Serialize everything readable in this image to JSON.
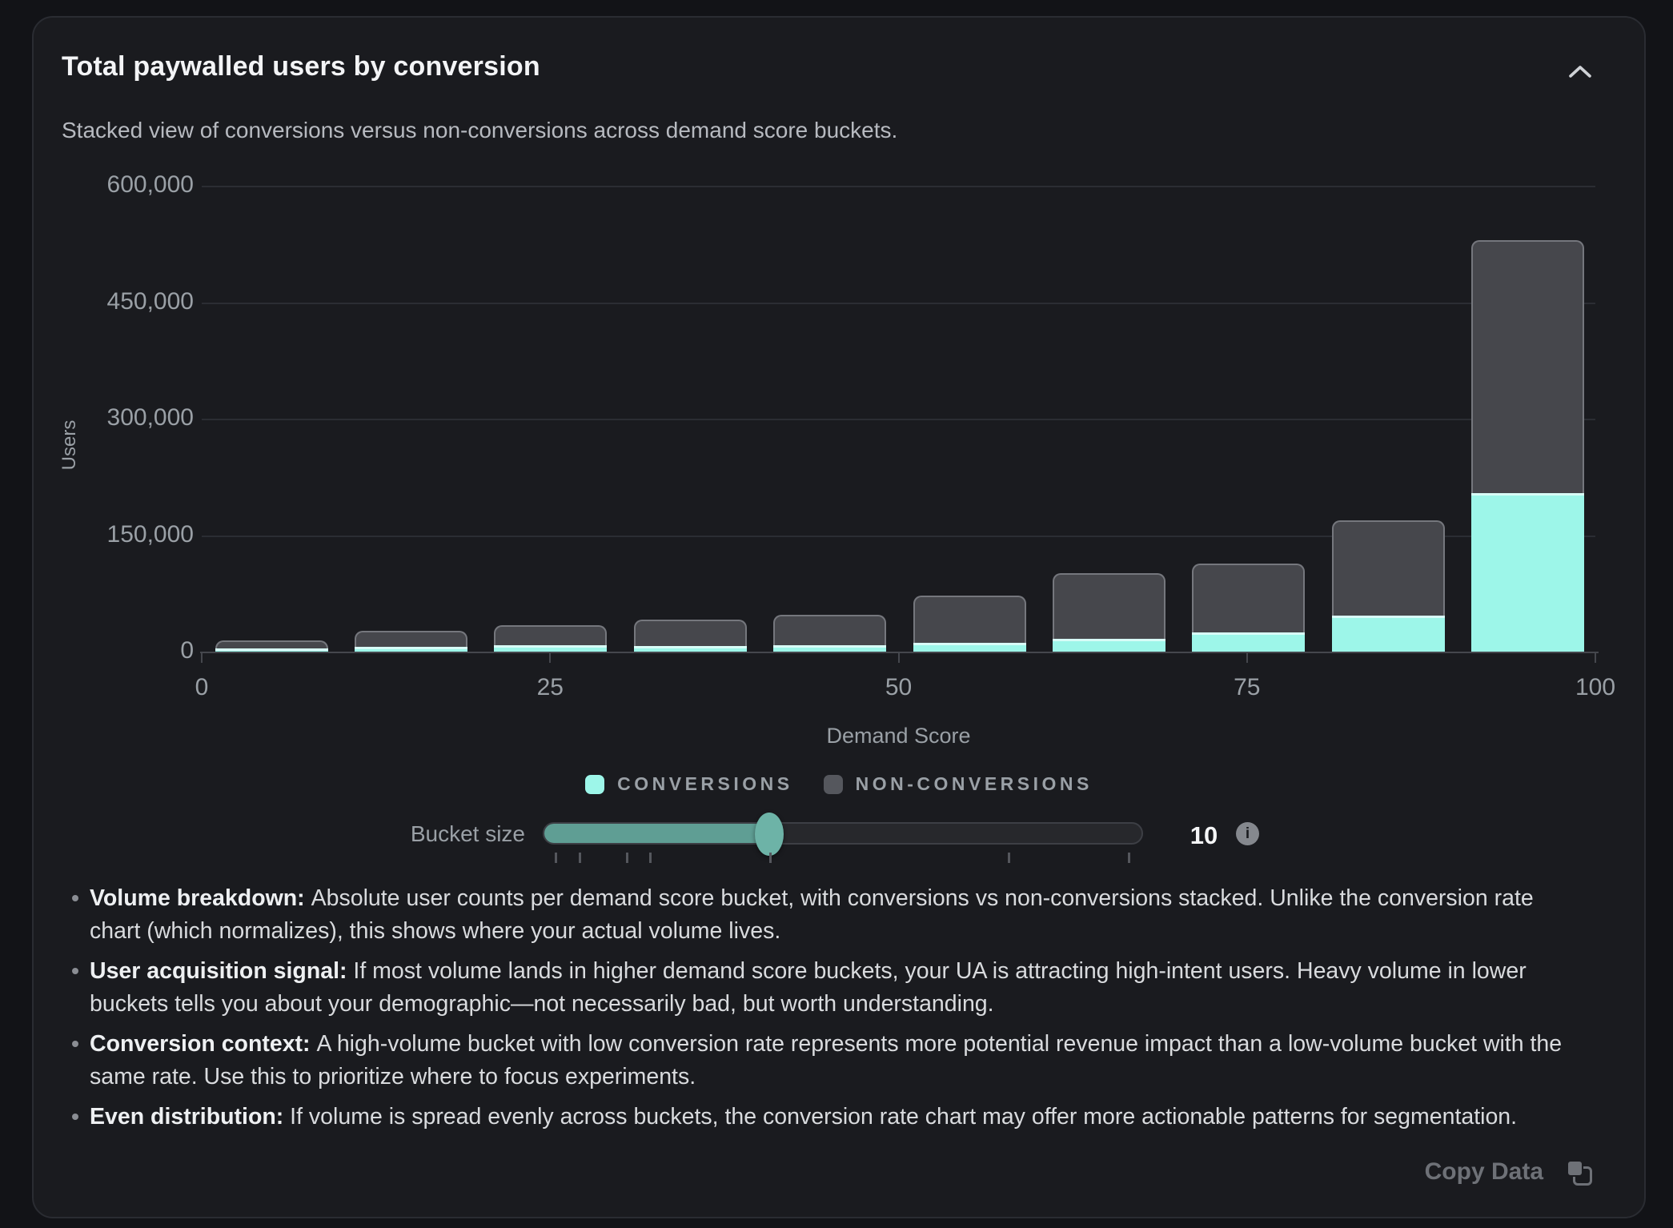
{
  "card": {
    "title": "Total paywalled users by conversion",
    "subtitle": "Stacked view of conversions versus non-conversions across demand score buckets.",
    "collapse_icon": "chevron-up",
    "copy_button_label": "Copy Data"
  },
  "chart_data": {
    "type": "bar",
    "stacked": true,
    "title": "Total paywalled users by conversion",
    "xlabel": "Demand Score",
    "ylabel": "Users",
    "ylim": [
      0,
      600000
    ],
    "xlim": [
      0,
      100
    ],
    "grid": true,
    "legend_position": "bottom",
    "categories": [
      "0-10",
      "10-20",
      "20-30",
      "30-40",
      "40-50",
      "50-60",
      "60-70",
      "70-80",
      "80-90",
      "90-100"
    ],
    "series": [
      {
        "name": "Conversions",
        "color": "#9df6e9",
        "values": [
          4200,
          6100,
          7800,
          6800,
          8400,
          11400,
          16800,
          24500,
          46000,
          204000
        ]
      },
      {
        "name": "Non-conversions",
        "color": "#46474c",
        "values": [
          10600,
          20700,
          26400,
          34500,
          39300,
          60400,
          84400,
          89300,
          123500,
          326000
        ]
      }
    ],
    "y_ticks": [
      {
        "value": 600000,
        "label": "600,000"
      },
      {
        "value": 450000,
        "label": "450,000"
      },
      {
        "value": 300000,
        "label": "300,000"
      },
      {
        "value": 150000,
        "label": "150,000"
      },
      {
        "value": 0,
        "label": "0"
      }
    ],
    "x_ticks": [
      {
        "value": 0,
        "label": "0"
      },
      {
        "value": 25,
        "label": "25"
      },
      {
        "value": 50,
        "label": "50"
      },
      {
        "value": 75,
        "label": "75"
      },
      {
        "value": 100,
        "label": "100"
      }
    ]
  },
  "legend": [
    {
      "label": "CONVERSIONS",
      "color": "#9df6e9",
      "icon": "swatch-conversions"
    },
    {
      "label": "NON-CONVERSIONS",
      "color": "#55575d",
      "icon": "swatch-non-conversions"
    }
  ],
  "slider": {
    "label": "Bucket size",
    "value": "10",
    "fill_percent": 37.7,
    "tick_positions_percent": [
      1.7,
      5.7,
      13.7,
      17.6,
      37.7,
      77.6,
      97.7
    ],
    "info_glyph": "i"
  },
  "bullets": [
    {
      "lead": "Volume breakdown:",
      "text": "Absolute user counts per demand score bucket, with conversions vs non-conversions stacked. Unlike the conversion rate chart (which normalizes), this shows where your actual volume lives."
    },
    {
      "lead": "User acquisition signal:",
      "text": "If most volume lands in higher demand score buckets, your UA is attracting high-intent users. Heavy volume in lower buckets tells you about your demographic—not necessarily bad, but worth understanding."
    },
    {
      "lead": "Conversion context:",
      "text": "A high-volume bucket with low conversion rate represents more potential revenue impact than a low-volume bucket with the same rate. Use this to prioritize where to focus experiments."
    },
    {
      "lead": "Even distribution:",
      "text": "If volume is spread evenly across buckets, the conversion rate chart may offer more actionable patterns for segmentation."
    }
  ],
  "colors": {
    "conversions": "#9df6e9",
    "non_conversions": "#46474c",
    "slider_accent": "#5f9e94",
    "card_bg": "#1a1b1f",
    "page_bg": "#121317"
  }
}
